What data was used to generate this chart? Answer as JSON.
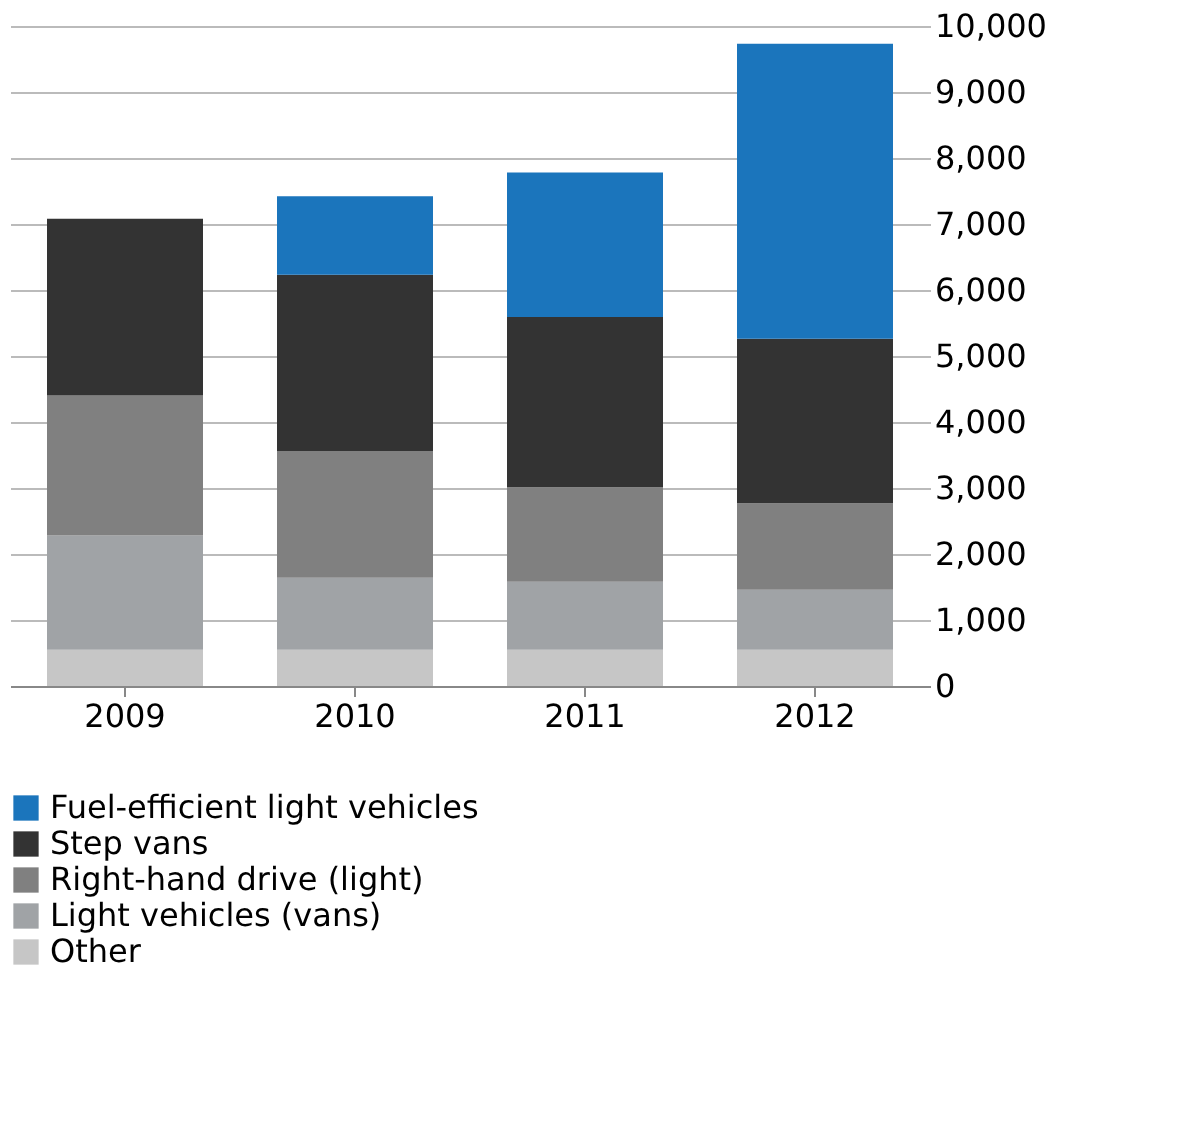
{
  "chart_data": {
    "type": "bar",
    "stacked": true,
    "categories": [
      "2009",
      "2010",
      "2011",
      "2012"
    ],
    "series": [
      {
        "name": "Other",
        "color": "#c6c6c6",
        "values": [
          550,
          550,
          550,
          550
        ]
      },
      {
        "name": "Light vehicles (vans)",
        "color": "#a0a3a6",
        "values": [
          1730,
          1090,
          1030,
          910
        ]
      },
      {
        "name": "Right-hand drive (light)",
        "color": "#808080",
        "values": [
          2120,
          1920,
          1430,
          1310
        ]
      },
      {
        "name": "Step vans",
        "color": "#333333",
        "values": [
          2680,
          2670,
          2580,
          2490
        ]
      },
      {
        "name": "Fuel-efficient light vehicles",
        "color": "#1b75bc",
        "values": [
          null,
          1190,
          2190,
          4470
        ]
      }
    ],
    "ylim": [
      0,
      10000
    ],
    "yticks": [
      0,
      {
        "value": 1000,
        "label": "1,000"
      },
      {
        "value": 2000,
        "label": "2,000"
      },
      {
        "value": 3000,
        "label": "3,000"
      },
      {
        "value": 4000,
        "label": "4,000"
      },
      {
        "value": 5000,
        "label": "5,000"
      },
      {
        "value": 6000,
        "label": "6,000"
      },
      {
        "value": 7000,
        "label": "7,000"
      },
      {
        "value": 8000,
        "label": "8,000"
      },
      {
        "value": 9000,
        "label": "9,000"
      },
      {
        "value": 10000,
        "label": "10,000"
      }
    ],
    "grid": "y",
    "legend": "bottom"
  }
}
